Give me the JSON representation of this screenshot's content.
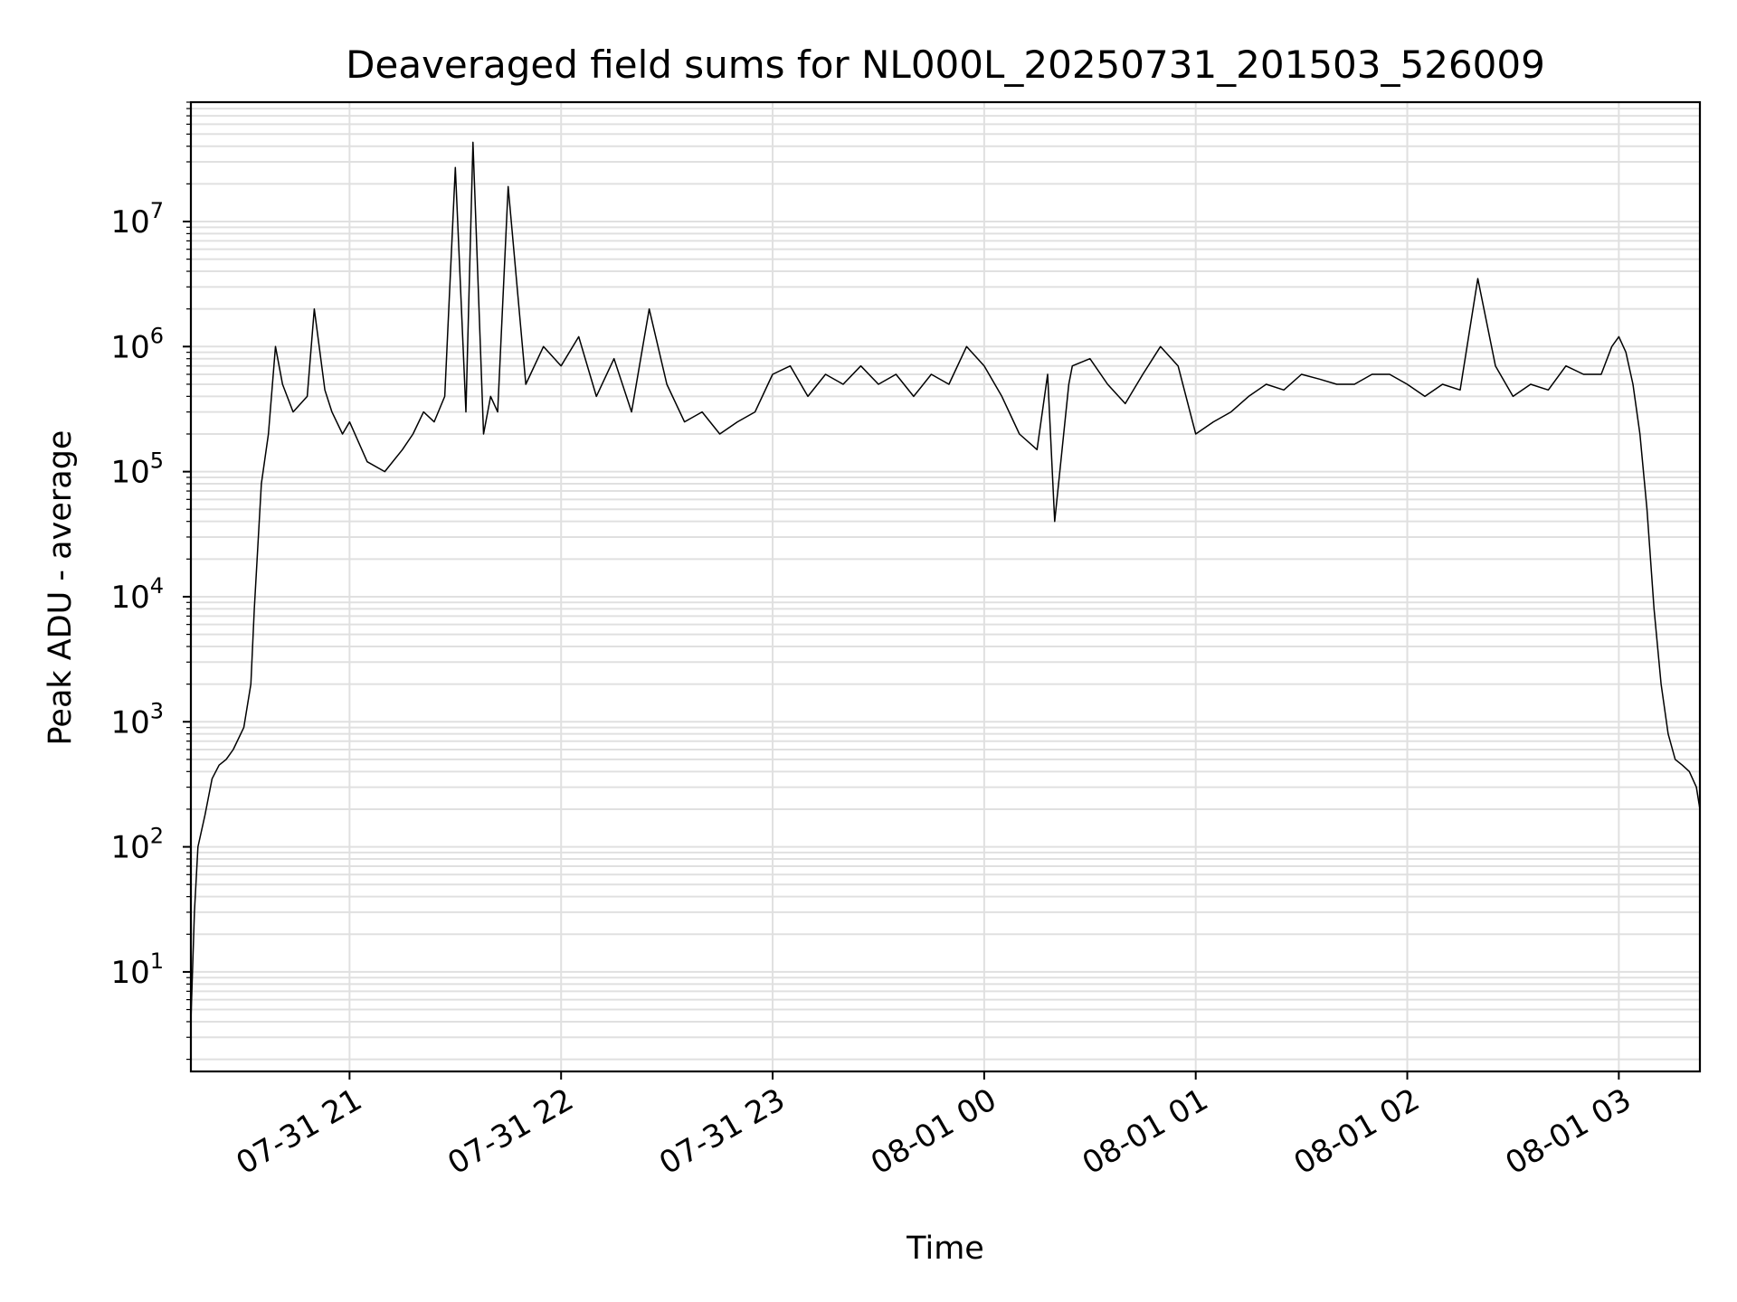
{
  "chart_data": {
    "type": "line",
    "title": "Deaveraged field sums for NL000L_20250731_201503_526009",
    "xlabel": "Time",
    "ylabel": "Peak ADU - average",
    "y_scale": "log",
    "ylim": [
      1.6,
      90000000
    ],
    "xlim": [
      "2025-07-31 20:15",
      "2025-08-01 03:23"
    ],
    "grid": true,
    "line_color": "#000000",
    "grid_color": "#e0e0e0",
    "x_tick_labels": [
      "07-31 21",
      "07-31 22",
      "07-31 23",
      "08-01 00",
      "08-01 01",
      "08-01 02",
      "08-01 03"
    ],
    "x_tick_times": [
      "2025-07-31 21:00",
      "2025-07-31 22:00",
      "2025-07-31 23:00",
      "2025-08-01 00:00",
      "2025-08-01 01:00",
      "2025-08-01 02:00",
      "2025-08-01 03:00"
    ],
    "y_tick_exponents": [
      "1",
      "2",
      "3",
      "4",
      "5",
      "6",
      "7"
    ],
    "y_tick_base": "10",
    "series": [
      {
        "x": [
          "2025-07-31 20:15",
          "2025-07-31 20:16",
          "2025-07-31 20:17",
          "2025-07-31 20:19",
          "2025-07-31 20:21",
          "2025-07-31 20:23",
          "2025-07-31 20:25",
          "2025-07-31 20:27",
          "2025-07-31 20:30",
          "2025-07-31 20:32",
          "2025-07-31 20:33",
          "2025-07-31 20:35",
          "2025-07-31 20:37",
          "2025-07-31 20:39",
          "2025-07-31 20:41",
          "2025-07-31 20:44",
          "2025-07-31 20:48",
          "2025-07-31 20:50",
          "2025-07-31 20:53",
          "2025-07-31 20:55",
          "2025-07-31 20:58",
          "2025-07-31 21:00",
          "2025-07-31 21:05",
          "2025-07-31 21:10",
          "2025-07-31 21:15",
          "2025-07-31 21:18",
          "2025-07-31 21:21",
          "2025-07-31 21:24",
          "2025-07-31 21:27",
          "2025-07-31 21:30",
          "2025-07-31 21:33",
          "2025-07-31 21:35",
          "2025-07-31 21:38",
          "2025-07-31 21:40",
          "2025-07-31 21:42",
          "2025-07-31 21:45",
          "2025-07-31 21:50",
          "2025-07-31 21:55",
          "2025-07-31 22:00",
          "2025-07-31 22:05",
          "2025-07-31 22:10",
          "2025-07-31 22:15",
          "2025-07-31 22:20",
          "2025-07-31 22:25",
          "2025-07-31 22:30",
          "2025-07-31 22:35",
          "2025-07-31 22:40",
          "2025-07-31 22:45",
          "2025-07-31 22:50",
          "2025-07-31 22:55",
          "2025-07-31 23:00",
          "2025-07-31 23:05",
          "2025-07-31 23:10",
          "2025-07-31 23:15",
          "2025-07-31 23:20",
          "2025-07-31 23:25",
          "2025-07-31 23:30",
          "2025-07-31 23:35",
          "2025-07-31 23:40",
          "2025-07-31 23:45",
          "2025-07-31 23:50",
          "2025-07-31 23:55",
          "2025-08-01 00:00",
          "2025-08-01 00:05",
          "2025-08-01 00:10",
          "2025-08-01 00:15",
          "2025-08-01 00:18",
          "2025-08-01 00:20",
          "2025-08-01 00:24",
          "2025-08-01 00:25",
          "2025-08-01 00:30",
          "2025-08-01 00:35",
          "2025-08-01 00:40",
          "2025-08-01 00:45",
          "2025-08-01 00:50",
          "2025-08-01 00:55",
          "2025-08-01 01:00",
          "2025-08-01 01:05",
          "2025-08-01 01:10",
          "2025-08-01 01:15",
          "2025-08-01 01:20",
          "2025-08-01 01:25",
          "2025-08-01 01:30",
          "2025-08-01 01:35",
          "2025-08-01 01:40",
          "2025-08-01 01:45",
          "2025-08-01 01:50",
          "2025-08-01 01:55",
          "2025-08-01 02:00",
          "2025-08-01 02:05",
          "2025-08-01 02:10",
          "2025-08-01 02:15",
          "2025-08-01 02:20",
          "2025-08-01 02:25",
          "2025-08-01 02:30",
          "2025-08-01 02:35",
          "2025-08-01 02:40",
          "2025-08-01 02:45",
          "2025-08-01 02:50",
          "2025-08-01 02:55",
          "2025-08-01 02:58",
          "2025-08-01 03:00",
          "2025-08-01 03:02",
          "2025-08-01 03:04",
          "2025-08-01 03:06",
          "2025-08-01 03:08",
          "2025-08-01 03:10",
          "2025-08-01 03:12",
          "2025-08-01 03:14",
          "2025-08-01 03:16",
          "2025-08-01 03:18",
          "2025-08-01 03:20",
          "2025-08-01 03:22",
          "2025-08-01 03:23"
        ],
        "y": [
          4,
          30,
          100,
          180,
          350,
          450,
          500,
          600,
          900,
          2000,
          8000,
          80000,
          200000,
          1000000,
          500000,
          300000,
          400000,
          2000000,
          450000,
          300000,
          200000,
          250000,
          120000,
          100000,
          150000,
          200000,
          300000,
          250000,
          400000,
          27000000,
          300000,
          43000000,
          200000,
          400000,
          300000,
          19000000,
          500000,
          1000000,
          700000,
          1200000,
          400000,
          800000,
          300000,
          2000000,
          500000,
          250000,
          300000,
          200000,
          250000,
          300000,
          600000,
          700000,
          400000,
          600000,
          500000,
          700000,
          500000,
          600000,
          400000,
          600000,
          500000,
          1000000,
          700000,
          400000,
          200000,
          150000,
          600000,
          40000,
          500000,
          700000,
          800000,
          500000,
          350000,
          600000,
          1000000,
          700000,
          200000,
          250000,
          300000,
          400000,
          500000,
          450000,
          600000,
          550000,
          500000,
          500000,
          600000,
          600000,
          500000,
          400000,
          500000,
          450000,
          3500000,
          700000,
          400000,
          500000,
          450000,
          700000,
          600000,
          600000,
          1000000,
          1200000,
          900000,
          500000,
          200000,
          50000,
          8000,
          2000,
          800,
          500,
          450,
          400,
          300,
          200
        ]
      }
    ]
  }
}
